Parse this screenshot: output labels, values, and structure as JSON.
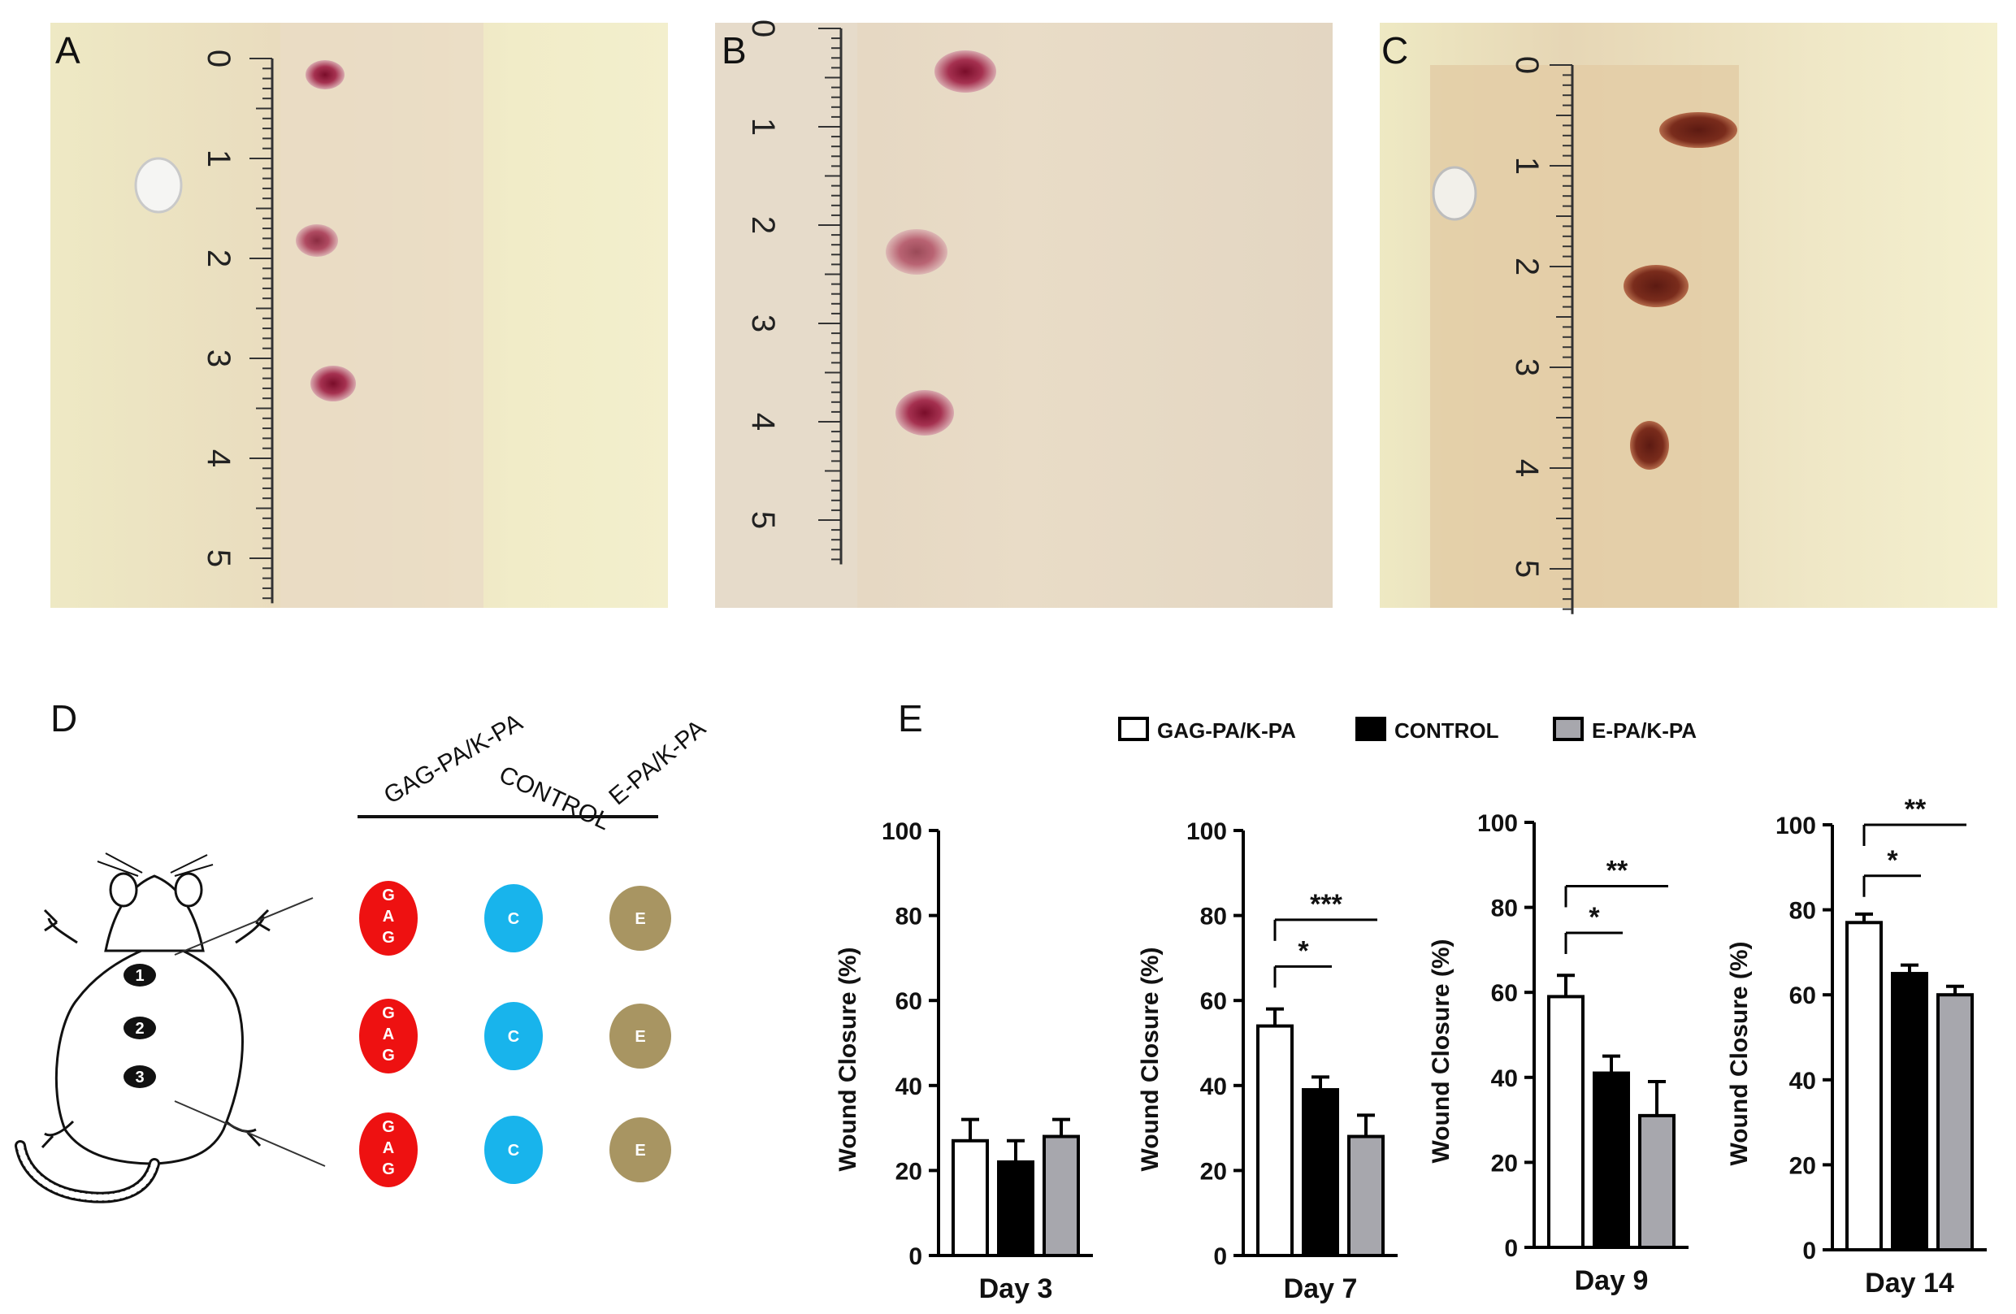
{
  "panels": {
    "A": "A",
    "B": "B",
    "C": "C",
    "D": "D",
    "E": "E"
  },
  "ruler_numbers": [
    "0",
    "1",
    "2",
    "3",
    "4",
    "5"
  ],
  "schematic": {
    "columns": [
      "GAG-PA/K-PA",
      "CONTROL",
      "E-PA/K-PA"
    ],
    "site_numbers": [
      "1",
      "2",
      "3"
    ],
    "circle_letters": {
      "gag": [
        "G",
        "A",
        "G"
      ],
      "control": "C",
      "e": "E"
    },
    "colors": {
      "gag": "#ee1111",
      "control": "#18b4ec",
      "e": "#a89562"
    }
  },
  "legend": [
    {
      "label": "GAG-PA/K-PA",
      "fill": "#ffffff"
    },
    {
      "label": "CONTROL",
      "fill": "#000000"
    },
    {
      "label": "E-PA/K-PA",
      "fill": "#a7a7ad"
    }
  ],
  "chart_data": [
    {
      "type": "bar",
      "categories": [
        "GAG-PA/K-PA",
        "CONTROL",
        "E-PA/K-PA"
      ],
      "values": [
        27,
        22,
        28
      ],
      "errors": [
        5,
        5,
        4
      ],
      "xlabel": "Day 3",
      "ylabel": "Wound Closure (%)",
      "ylim": [
        0,
        100
      ],
      "yticks": [
        "0",
        "20",
        "40",
        "60",
        "80",
        "100"
      ],
      "significance": []
    },
    {
      "type": "bar",
      "categories": [
        "GAG-PA/K-PA",
        "CONTROL",
        "E-PA/K-PA"
      ],
      "values": [
        54,
        39,
        28
      ],
      "errors": [
        4,
        3,
        5
      ],
      "xlabel": "Day 7",
      "ylabel": "Wound Closure (%)",
      "ylim": [
        0,
        100
      ],
      "yticks": [
        "0",
        "20",
        "40",
        "60",
        "80",
        "100"
      ],
      "significance": [
        {
          "from": 0,
          "to": 1,
          "label": "*",
          "y": 68
        },
        {
          "from": 0,
          "to": 2,
          "label": "***",
          "y": 79
        }
      ]
    },
    {
      "type": "bar",
      "categories": [
        "GAG-PA/K-PA",
        "CONTROL",
        "E-PA/K-PA"
      ],
      "values": [
        59,
        41,
        31
      ],
      "errors": [
        5,
        4,
        8
      ],
      "xlabel": "Day 9",
      "ylabel": "Wound Closure (%)",
      "ylim": [
        0,
        100
      ],
      "yticks": [
        "0",
        "20",
        "40",
        "60",
        "80",
        "100"
      ],
      "significance": [
        {
          "from": 0,
          "to": 1,
          "label": "*",
          "y": 74
        },
        {
          "from": 0,
          "to": 2,
          "label": "**",
          "y": 85
        }
      ]
    },
    {
      "type": "bar",
      "categories": [
        "GAG-PA/K-PA",
        "CONTROL",
        "E-PA/K-PA"
      ],
      "values": [
        77,
        65,
        60
      ],
      "errors": [
        2,
        2,
        2
      ],
      "xlabel": "Day 14",
      "ylabel": "Wound Closure (%)",
      "ylim": [
        0,
        100
      ],
      "yticks": [
        "0",
        "20",
        "40",
        "60",
        "80",
        "100"
      ],
      "significance": [
        {
          "from": 0,
          "to": 1,
          "label": "*",
          "y": 88
        },
        {
          "from": 0,
          "to": 2,
          "label": "**",
          "y": 100
        }
      ]
    }
  ]
}
